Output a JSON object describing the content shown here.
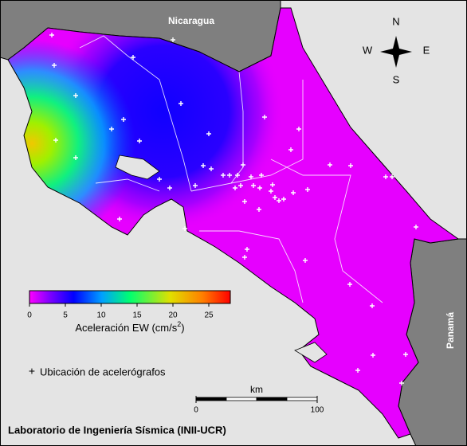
{
  "map": {
    "labels": {
      "nicaragua": "Nicaragua",
      "panama": "Panamá"
    },
    "compass": {
      "n": "N",
      "s": "S",
      "w": "W",
      "e": "E"
    },
    "colorbar": {
      "lim": [
        0,
        28
      ],
      "ticks": [
        0,
        5,
        10,
        15,
        20,
        25
      ],
      "label": "Aceleración EW (cm/s",
      "label_sup": "2",
      "label_end": ")"
    },
    "legend": {
      "marker": "+",
      "text": "Ubicación de acelerógrafos"
    },
    "scale_bar": {
      "unit": "km",
      "lim": [
        0,
        100
      ],
      "ticks": [
        0,
        100
      ]
    },
    "credit": "Laboratorio de Ingeniería Sísmica (INII-UCR)"
  }
}
